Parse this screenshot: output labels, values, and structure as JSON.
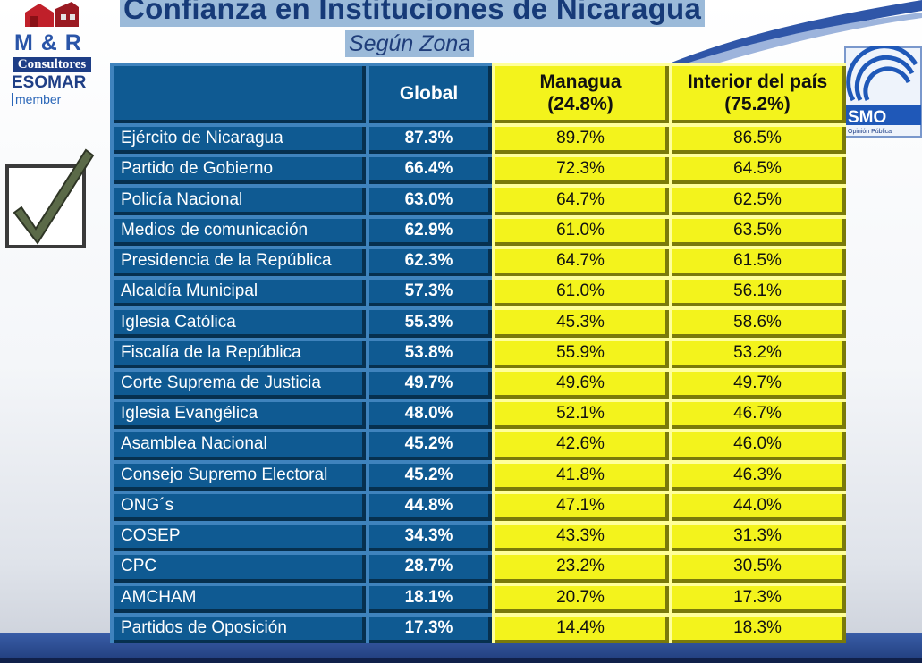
{
  "title": "Confianza en Instituciones de Nicaragua",
  "subtitle": "Según Zona",
  "logo_left": {
    "line1": "M & R",
    "line2": "Consultores",
    "line3": "ESOMAR",
    "line4": "member"
  },
  "logo_right": {
    "text": "SMO",
    "small": "Opinión Pública"
  },
  "colors": {
    "title_bg": "#9bbad9",
    "blue_cell": "#0f5a92",
    "yellow_cell": "#f3f31c",
    "title_text": "#163a78"
  },
  "table": {
    "headers": {
      "global": "Global",
      "managua": "Managua",
      "managua_pct": "(24.8%)",
      "interior": "Interior del país",
      "interior_pct": "(75.2%)"
    },
    "rows": [
      {
        "institution": "Ejército de Nicaragua",
        "global": "87.3%",
        "managua": "89.7%",
        "interior": "86.5%"
      },
      {
        "institution": "Partido de Gobierno",
        "global": "66.4%",
        "managua": "72.3%",
        "interior": "64.5%"
      },
      {
        "institution": "Policía Nacional",
        "global": "63.0%",
        "managua": "64.7%",
        "interior": "62.5%"
      },
      {
        "institution": "Medios de comunicación",
        "global": "62.9%",
        "managua": "61.0%",
        "interior": "63.5%"
      },
      {
        "institution": "Presidencia de la República",
        "global": "62.3%",
        "managua": "64.7%",
        "interior": "61.5%"
      },
      {
        "institution": "Alcaldía Municipal",
        "global": "57.3%",
        "managua": "61.0%",
        "interior": "56.1%"
      },
      {
        "institution": "Iglesia Católica",
        "global": "55.3%",
        "managua": "45.3%",
        "interior": "58.6%"
      },
      {
        "institution": "Fiscalía de la República",
        "global": "53.8%",
        "managua": "55.9%",
        "interior": "53.2%"
      },
      {
        "institution": "Corte Suprema de Justicia",
        "global": "49.7%",
        "managua": "49.6%",
        "interior": "49.7%"
      },
      {
        "institution": "Iglesia Evangélica",
        "global": "48.0%",
        "managua": "52.1%",
        "interior": "46.7%"
      },
      {
        "institution": "Asamblea Nacional",
        "global": "45.2%",
        "managua": "42.6%",
        "interior": "46.0%"
      },
      {
        "institution": "Consejo Supremo Electoral",
        "global": "45.2%",
        "managua": "41.8%",
        "interior": "46.3%"
      },
      {
        "institution": "ONG´s",
        "global": "44.8%",
        "managua": "47.1%",
        "interior": "44.0%"
      },
      {
        "institution": "COSEP",
        "global": "34.3%",
        "managua": "43.3%",
        "interior": "31.3%"
      },
      {
        "institution": "CPC",
        "global": "28.7%",
        "managua": "23.2%",
        "interior": "30.5%"
      },
      {
        "institution": "AMCHAM",
        "global": "18.1%",
        "managua": "20.7%",
        "interior": "17.3%"
      },
      {
        "institution": "Partidos de Oposición",
        "global": "17.3%",
        "managua": "14.4%",
        "interior": "18.3%"
      }
    ]
  }
}
